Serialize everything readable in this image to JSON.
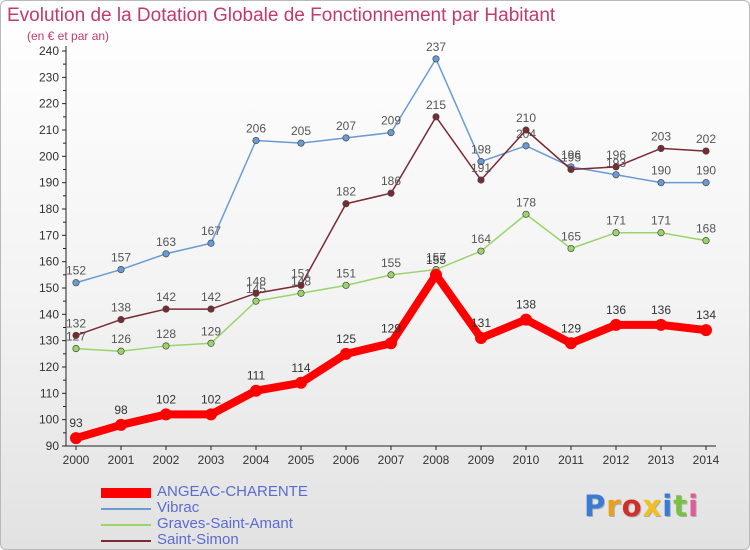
{
  "chart_data": {
    "type": "line",
    "title": "Evolution de la Dotation Globale de Fonctionnement par Habitant",
    "subtitle": "(en € et par an)",
    "x": [
      "2000",
      "2001",
      "2002",
      "2003",
      "2004",
      "2005",
      "2006",
      "2007",
      "2008",
      "2009",
      "2010",
      "2011",
      "2012",
      "2013",
      "2014"
    ],
    "yticks": [
      "90",
      "100",
      "110",
      "120",
      "130",
      "140",
      "150",
      "160",
      "170",
      "180",
      "190",
      "200",
      "210",
      "220",
      "230",
      "240"
    ],
    "ylim": [
      90,
      240
    ],
    "grid": false,
    "legend_position": "bottom-left",
    "series": [
      {
        "name": "ANGEAC-CHARENTE",
        "color": "#ff0000",
        "label_color": "#333333",
        "values": [
          93,
          98,
          102,
          102,
          111,
          114,
          125,
          129,
          155,
          131,
          138,
          129,
          136,
          136,
          134
        ]
      },
      {
        "name": "Vibrac",
        "color": "#6a9bd4",
        "label_color": "#555555",
        "values": [
          152,
          157,
          163,
          167,
          206,
          205,
          207,
          209,
          237,
          198,
          204,
          196,
          193,
          190,
          190
        ]
      },
      {
        "name": "Graves-Saint-Amant",
        "color": "#9ad46a",
        "label_color": "#555555",
        "values": [
          127,
          126,
          128,
          129,
          145,
          148,
          151,
          155,
          157,
          164,
          178,
          165,
          171,
          171,
          168
        ]
      },
      {
        "name": "Saint-Simon",
        "color": "#7a2a33",
        "label_color": "#555555",
        "values": [
          132,
          138,
          142,
          142,
          148,
          151,
          182,
          186,
          215,
          191,
          210,
          195,
          196,
          203,
          202
        ]
      }
    ]
  },
  "legend": [
    {
      "label": "ANGEAC-CHARENTE",
      "color": "#ff0000",
      "text_color": "#5b6bd0"
    },
    {
      "label": "Vibrac",
      "color": "#6a9bd4",
      "text_color": "#5b6bd0"
    },
    {
      "label": "Graves-Saint-Amant",
      "color": "#9ad46a",
      "text_color": "#5b6bd0"
    },
    {
      "label": "Saint-Simon",
      "color": "#7a2a33",
      "text_color": "#5b6bd0"
    }
  ],
  "logo": {
    "text": "Proxiti",
    "colors": [
      "#3a7bd5",
      "#e8a020",
      "#d0302a",
      "#f0c020",
      "#3a7bd5",
      "#7ac043",
      "#e05a9a"
    ]
  }
}
